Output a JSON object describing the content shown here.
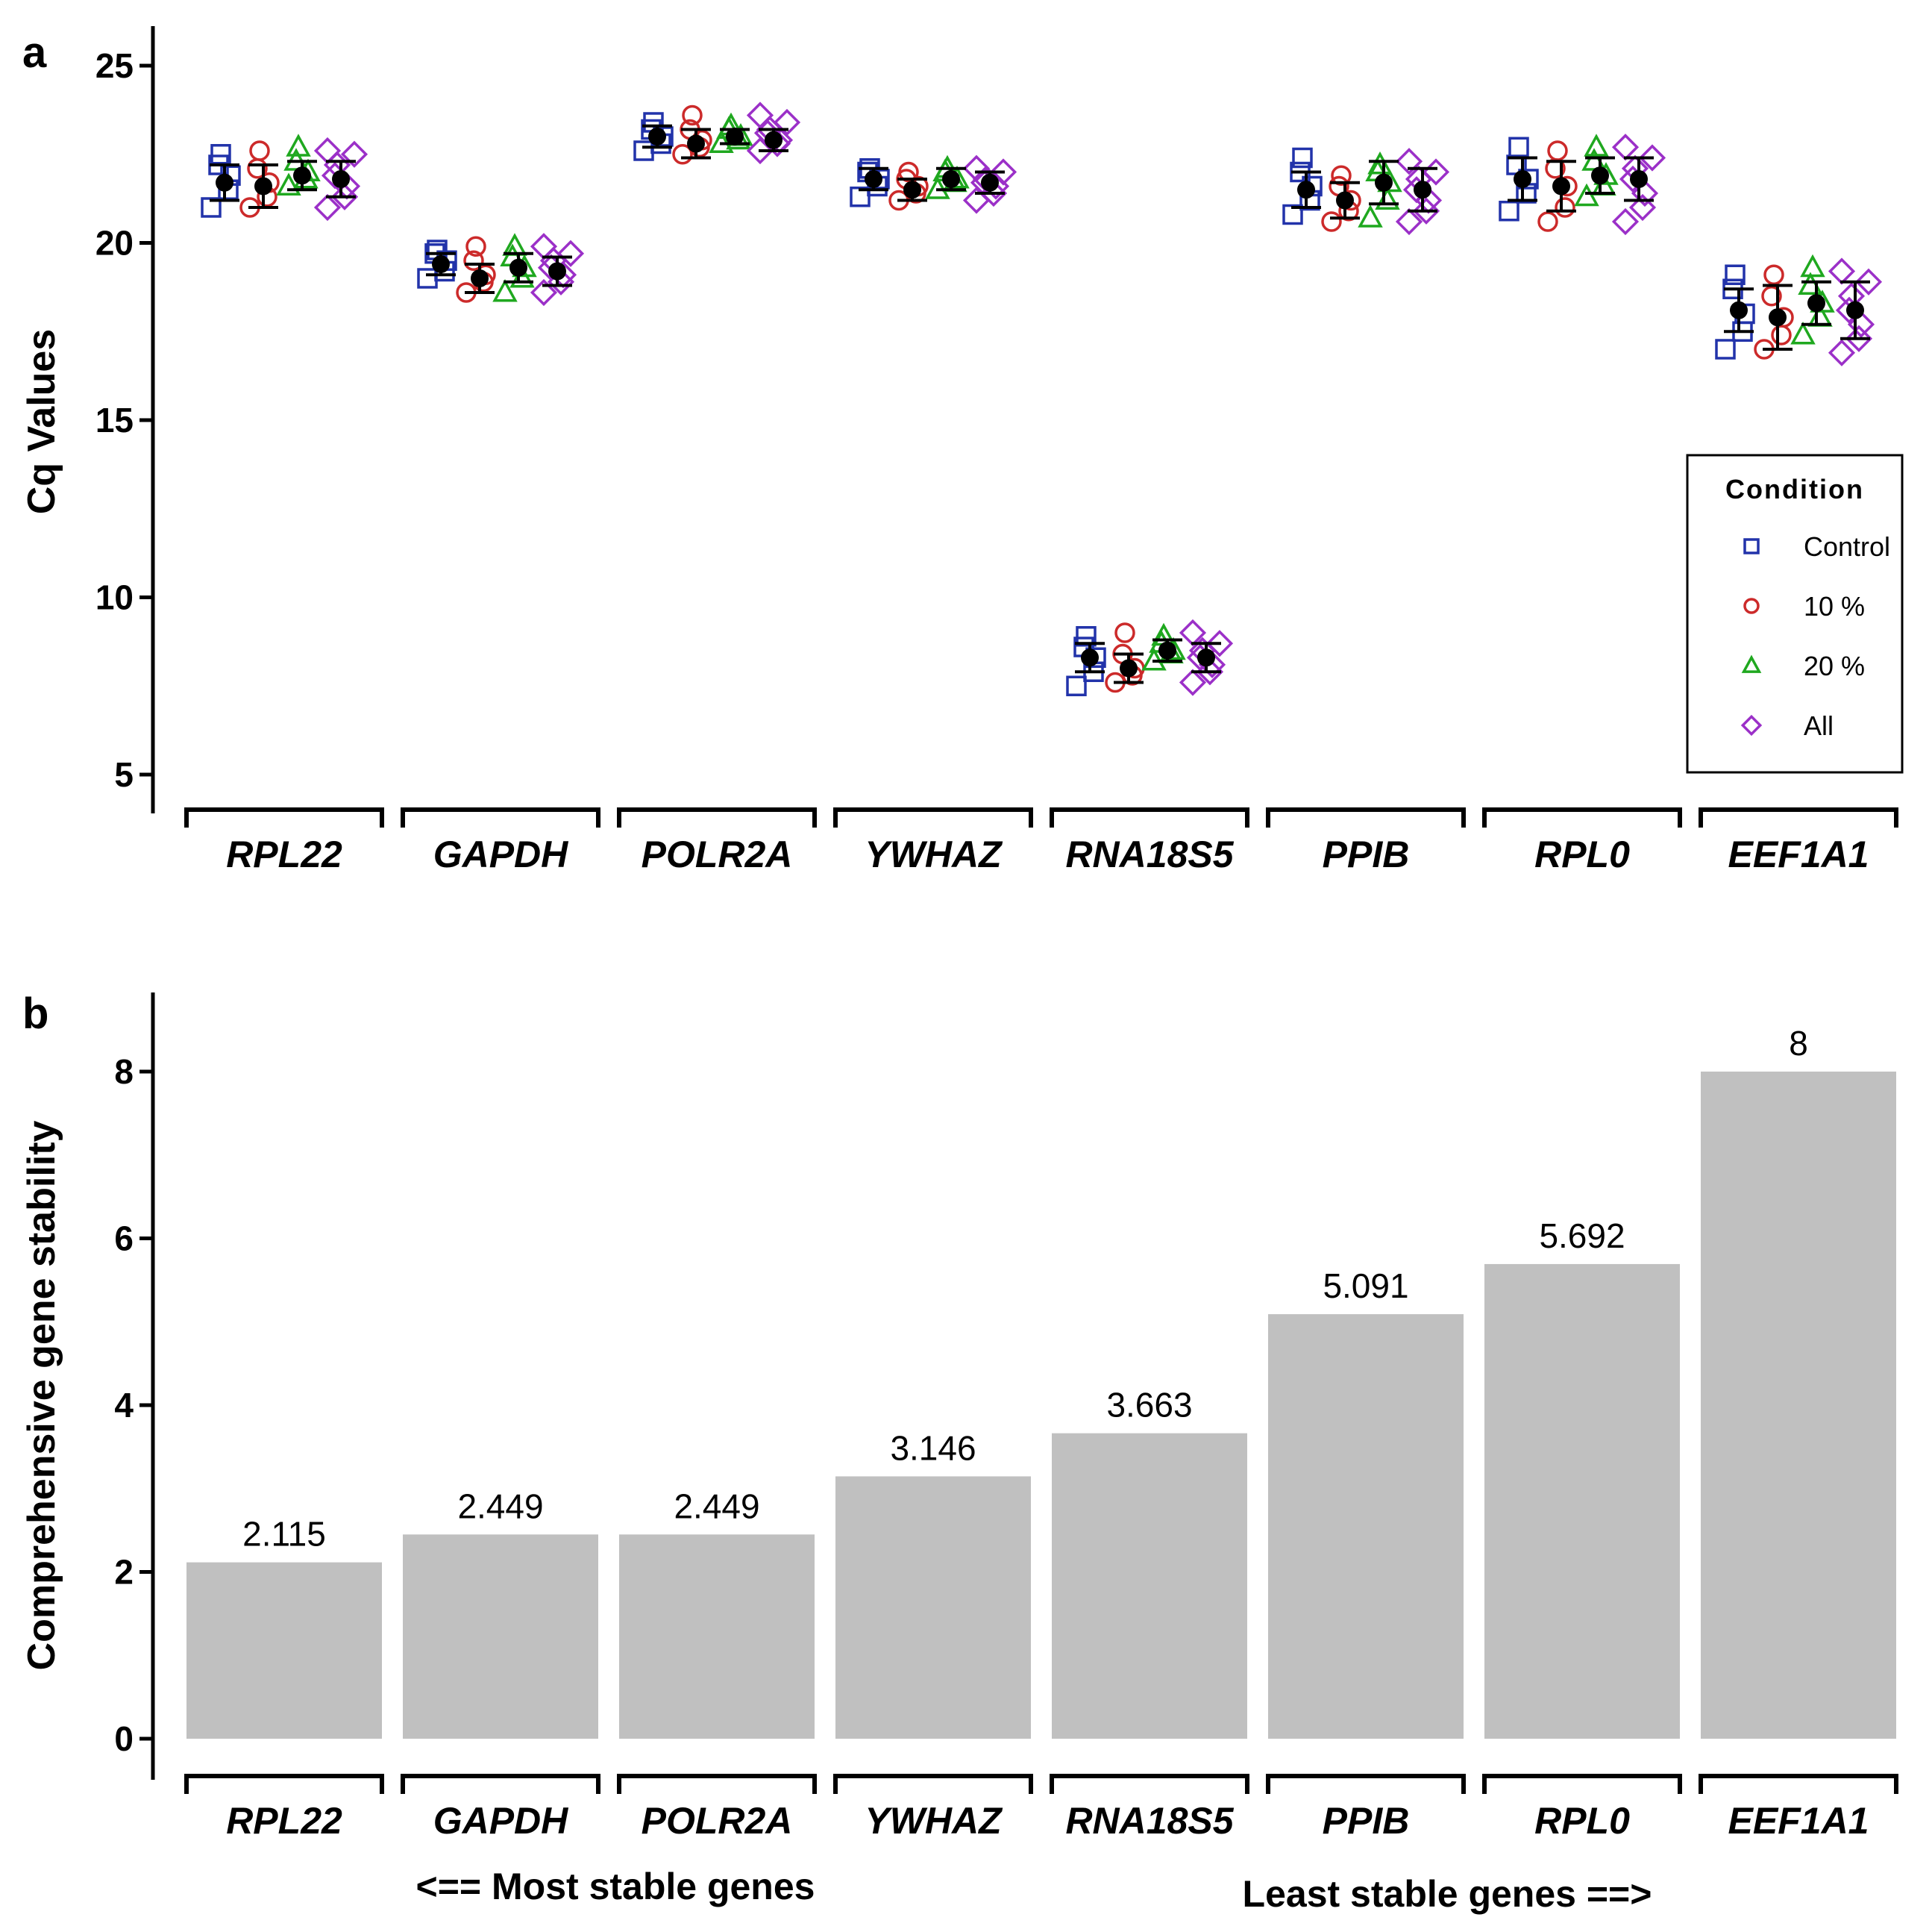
{
  "chart_data": [
    {
      "type": "scatter",
      "panel": "a",
      "ylabel": "Cq Values",
      "ylim": [
        5,
        25
      ],
      "yticks": [
        5,
        10,
        15,
        20,
        25
      ],
      "categories": [
        "RPL22",
        "GAPDH",
        "POLR2A",
        "YWHAZ",
        "RNA18S5",
        "PPIB",
        "RPL0",
        "EEF1A1"
      ],
      "legend": {
        "title": "Condition",
        "position": "right",
        "entries": [
          {
            "name": "Control",
            "marker": "square",
            "color": "#2233aa"
          },
          {
            "name": "10 %",
            "marker": "circle",
            "color": "#cc2a2a"
          },
          {
            "name": "20 %",
            "marker": "triangle",
            "color": "#1fa81f"
          },
          {
            "name": "All",
            "marker": "diamond",
            "color": "#9b30c8"
          }
        ]
      },
      "series": [
        {
          "name": "Control",
          "mean": [
            21.7,
            19.4,
            23.0,
            21.8,
            8.3,
            21.5,
            21.8,
            18.1
          ],
          "sd": [
            0.5,
            0.3,
            0.3,
            0.3,
            0.4,
            0.5,
            0.6,
            0.6
          ],
          "points": [
            [
              21.0,
              21.5,
              21.9,
              22.2,
              22.5
            ],
            [
              19.0,
              19.2,
              19.5,
              19.7,
              19.8
            ],
            [
              22.6,
              22.8,
              23.0,
              23.2,
              23.4
            ],
            [
              21.3,
              21.6,
              21.8,
              22.0,
              22.1
            ],
            [
              7.5,
              7.9,
              8.3,
              8.6,
              8.9
            ],
            [
              20.8,
              21.2,
              21.6,
              22.0,
              22.4
            ],
            [
              20.9,
              21.4,
              21.8,
              22.2,
              22.7
            ],
            [
              17.0,
              17.5,
              18.0,
              18.7,
              19.1
            ]
          ]
        },
        {
          "name": "10 %",
          "mean": [
            21.6,
            19.0,
            22.8,
            21.5,
            8.0,
            21.2,
            21.6,
            17.9
          ],
          "sd": [
            0.6,
            0.4,
            0.4,
            0.3,
            0.4,
            0.5,
            0.7,
            0.9
          ],
          "points": [
            [
              21.0,
              21.3,
              21.7,
              22.1,
              22.6
            ],
            [
              18.6,
              18.9,
              19.1,
              19.5,
              19.9
            ],
            [
              22.5,
              22.7,
              22.9,
              23.2,
              23.6
            ],
            [
              21.2,
              21.4,
              21.6,
              21.8,
              22.0
            ],
            [
              7.6,
              7.8,
              8.0,
              8.4,
              9.0
            ],
            [
              20.6,
              20.9,
              21.2,
              21.6,
              21.9
            ],
            [
              20.6,
              21.0,
              21.6,
              22.1,
              22.6
            ],
            [
              17.0,
              17.4,
              17.9,
              18.5,
              19.1
            ]
          ]
        },
        {
          "name": "20 %",
          "mean": [
            21.9,
            19.3,
            23.0,
            21.8,
            8.5,
            21.7,
            21.9,
            18.3
          ],
          "sd": [
            0.4,
            0.4,
            0.2,
            0.3,
            0.3,
            0.6,
            0.5,
            0.6
          ],
          "points": [
            [
              21.6,
              21.8,
              22.0,
              22.3,
              22.7
            ],
            [
              18.6,
              19.0,
              19.3,
              19.6,
              19.9
            ],
            [
              22.8,
              22.9,
              23.0,
              23.2,
              23.3
            ],
            [
              21.5,
              21.7,
              21.8,
              22.0,
              22.1
            ],
            [
              8.2,
              8.4,
              8.5,
              8.7,
              8.9
            ],
            [
              20.7,
              21.2,
              21.7,
              22.0,
              22.2
            ],
            [
              21.3,
              21.6,
              21.9,
              22.3,
              22.7
            ],
            [
              17.4,
              17.9,
              18.3,
              18.8,
              19.3
            ]
          ]
        },
        {
          "name": "All",
          "mean": [
            21.8,
            19.2,
            22.9,
            21.7,
            8.3,
            21.5,
            21.8,
            18.1
          ],
          "sd": [
            0.5,
            0.4,
            0.3,
            0.3,
            0.4,
            0.6,
            0.6,
            0.8
          ],
          "points": [
            [
              21.0,
              21.3,
              21.6,
              21.9,
              22.2,
              22.5,
              22.6
            ],
            [
              18.6,
              18.9,
              19.1,
              19.3,
              19.5,
              19.7,
              19.9
            ],
            [
              22.6,
              22.8,
              22.9,
              23.1,
              23.2,
              23.4,
              23.6
            ],
            [
              21.2,
              21.4,
              21.6,
              21.7,
              21.8,
              22.0,
              22.1
            ],
            [
              7.6,
              7.9,
              8.1,
              8.3,
              8.5,
              8.7,
              9.0
            ],
            [
              20.6,
              20.9,
              21.2,
              21.5,
              21.8,
              22.0,
              22.3
            ],
            [
              20.6,
              21.0,
              21.4,
              21.8,
              22.1,
              22.4,
              22.7
            ],
            [
              16.9,
              17.3,
              17.7,
              18.1,
              18.5,
              18.9,
              19.2
            ]
          ]
        }
      ]
    },
    {
      "type": "bar",
      "panel": "b",
      "ylabel": "Comprehensive gene stability",
      "ylim": [
        0,
        8.9
      ],
      "yticks": [
        0,
        2,
        4,
        6,
        8
      ],
      "categories": [
        "RPL22",
        "GAPDH",
        "POLR2A",
        "YWHAZ",
        "RNA18S5",
        "PPIB",
        "RPL0",
        "EEF1A1"
      ],
      "values": [
        2.115,
        2.449,
        2.449,
        3.146,
        3.663,
        5.091,
        5.692,
        8
      ],
      "value_labels": [
        "2.115",
        "2.449",
        "2.449",
        "3.146",
        "3.663",
        "5.091",
        "5.692",
        "8"
      ],
      "bar_color": "#c0c0c0",
      "annotations": {
        "left": "<== Most stable genes",
        "right": "Least stable genes ==>"
      }
    }
  ]
}
